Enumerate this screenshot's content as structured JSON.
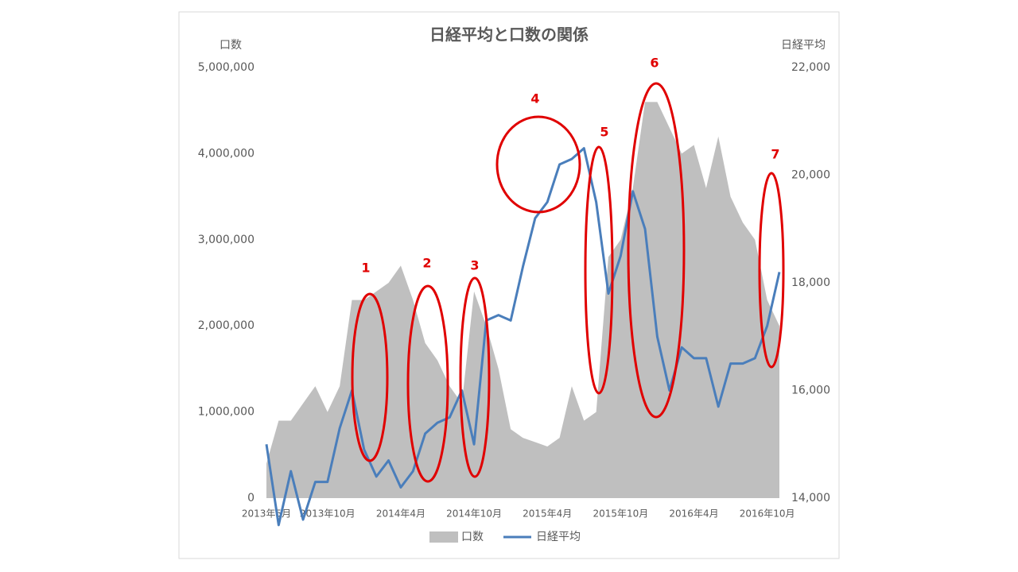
{
  "chart_data": {
    "type": "area-line",
    "title": "日経平均と口数の関係",
    "y_label": "口数",
    "y2_label": "日経平均",
    "categories": [
      "2013年5月",
      null,
      null,
      null,
      null,
      "2013年10月",
      null,
      null,
      null,
      null,
      null,
      "2014年4月",
      null,
      null,
      null,
      null,
      null,
      "2014年10月",
      null,
      null,
      null,
      null,
      null,
      "2015年4月",
      null,
      null,
      null,
      null,
      null,
      "2015年10月",
      null,
      null,
      null,
      null,
      null,
      "2016年4月",
      null,
      null,
      null,
      null,
      null,
      "2016年10月",
      null
    ],
    "series": [
      {
        "name": "口数",
        "color": "#bfbfbf",
        "axis": "y",
        "values": [
          400000,
          900000,
          900000,
          1100000,
          1300000,
          1000000,
          1300000,
          2300000,
          2300000,
          2400000,
          2500000,
          2700000,
          2300000,
          1800000,
          1600000,
          1300000,
          1100000,
          2400000,
          2000000,
          1500000,
          800000,
          700000,
          650000,
          600000,
          700000,
          1300000,
          900000,
          1000000,
          2800000,
          3000000,
          3600000,
          4600000,
          4600000,
          4300000,
          4000000,
          4100000,
          3600000,
          4200000,
          3500000,
          3200000,
          3000000,
          2300000,
          2000000
        ]
      },
      {
        "name": "日経平均",
        "color": "#4a7ebb",
        "axis": "y2",
        "values": [
          15000,
          13500,
          14500,
          13600,
          14300,
          14300,
          15300,
          16000,
          14900,
          14400,
          14700,
          14200,
          14500,
          15200,
          15400,
          15500,
          16000,
          15000,
          17300,
          17400,
          17300,
          18300,
          19200,
          19500,
          20200,
          20300,
          20500,
          19500,
          17800,
          18500,
          19700,
          19000,
          17000,
          16000,
          16800,
          16600,
          16600,
          15700,
          16500,
          16500,
          16600,
          17200,
          18200
        ]
      }
    ],
    "ylim": [
      0,
      5000000
    ],
    "yticks": [
      0,
      {
        "value": 1000000,
        "label": "1,000,000"
      },
      {
        "value": 2000000,
        "label": "2,000,000"
      },
      {
        "value": 3000000,
        "label": "3,000,000"
      },
      {
        "value": 4000000,
        "label": "4,000,000"
      },
      {
        "value": 5000000,
        "label": "5,000,000"
      }
    ],
    "y2lim": [
      14000,
      22000
    ],
    "y2ticks": [
      {
        "value": 14000,
        "label": "14,000"
      },
      {
        "value": 16000,
        "label": "16,000"
      },
      {
        "value": 18000,
        "label": "18,000"
      },
      {
        "value": 20000,
        "label": "20,000"
      },
      {
        "value": 22000,
        "label": "22,000"
      }
    ],
    "annotations": [
      "1",
      "2",
      "3",
      "4",
      "5",
      "6",
      "7"
    ],
    "annotation_color": "#e00000"
  }
}
